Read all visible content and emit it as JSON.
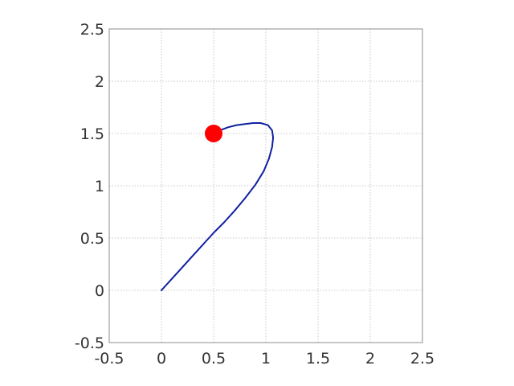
{
  "chart_data": {
    "type": "line",
    "title": "",
    "xlabel": "",
    "ylabel": "",
    "xlim": [
      -0.5,
      2.5
    ],
    "ylim": [
      -0.5,
      2.5
    ],
    "xticks": [
      -0.5,
      0,
      0.5,
      1,
      1.5,
      2,
      2.5
    ],
    "yticks": [
      -0.5,
      0,
      0.5,
      1,
      1.5,
      2,
      2.5
    ],
    "xtick_labels": [
      "-0.5",
      "0",
      "0.5",
      "1",
      "1.5",
      "2",
      "2.5"
    ],
    "ytick_labels": [
      "-0.5",
      "0",
      "0.5",
      "1",
      "1.5",
      "2",
      "2.5"
    ],
    "grid": true,
    "series": [
      {
        "color": "#1020a0",
        "x": [
          0,
          0.1,
          0.2,
          0.3,
          0.4,
          0.5,
          0.6,
          0.7,
          0.8,
          0.9,
          0.98,
          1.03,
          1.06,
          1.07,
          1.06,
          1.02,
          0.95,
          0.88,
          0.8,
          0.72,
          0.64,
          0.56,
          0.5
        ],
        "y": [
          0,
          0.11,
          0.22,
          0.33,
          0.44,
          0.55,
          0.65,
          0.76,
          0.88,
          1.01,
          1.14,
          1.26,
          1.37,
          1.46,
          1.53,
          1.58,
          1.6,
          1.6,
          1.59,
          1.58,
          1.56,
          1.53,
          1.5
        ]
      }
    ],
    "marker": {
      "x": 0.5,
      "y": 1.5,
      "color": "#ff0000"
    }
  }
}
